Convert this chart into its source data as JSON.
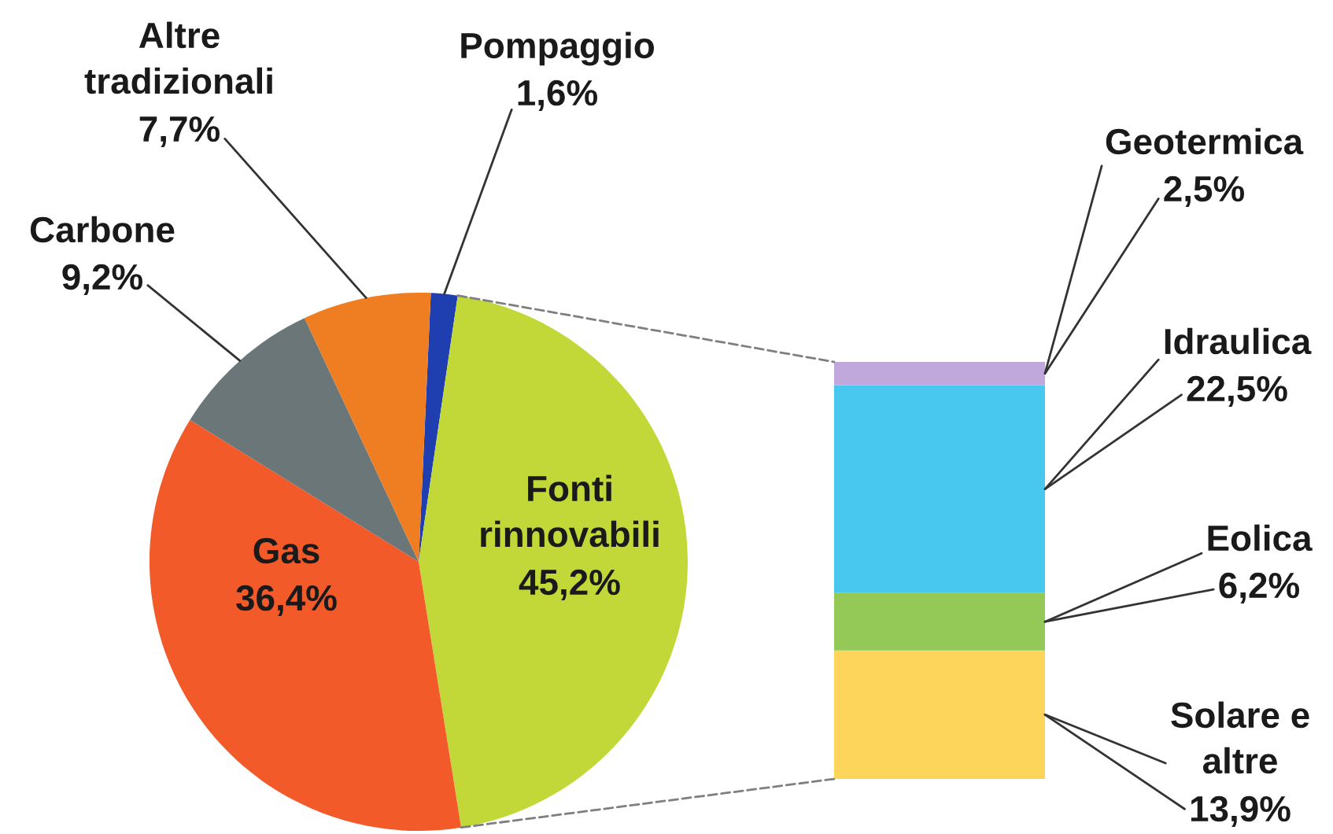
{
  "chart_data": [
    {
      "type": "pie",
      "categories": [
        "Pompaggio",
        "Fonti\nrinnovabili",
        "Gas",
        "Carbone",
        "Altre\ntradizionali"
      ],
      "values": [
        1.6,
        45.2,
        36.4,
        9.2,
        7.7
      ],
      "colors": [
        "#1f3fb0",
        "#c2d838",
        "#f35a2a",
        "#6b7678",
        "#ef7d22"
      ],
      "value_labels": [
        "1,6%",
        "45,2%",
        "36,4%",
        "9,2%",
        "7,7%"
      ]
    },
    {
      "type": "bar",
      "stacked": true,
      "categories": [
        null
      ],
      "series": [
        {
          "name": "Solare e\naltre",
          "color": "#fcd55a",
          "values": [
            13.9
          ],
          "value_labels": [
            "13,9%"
          ]
        },
        {
          "name": "Eolica",
          "color": "#94c857",
          "values": [
            6.2
          ],
          "value_labels": [
            "6,2%"
          ]
        },
        {
          "name": "Idraulica",
          "color": "#48c8ee",
          "values": [
            22.5
          ],
          "value_labels": [
            "22,5%"
          ]
        },
        {
          "name": "Geotermica",
          "color": "#c0a8dc",
          "values": [
            2.5
          ],
          "value_labels": [
            "2,5%"
          ]
        }
      ]
    }
  ]
}
